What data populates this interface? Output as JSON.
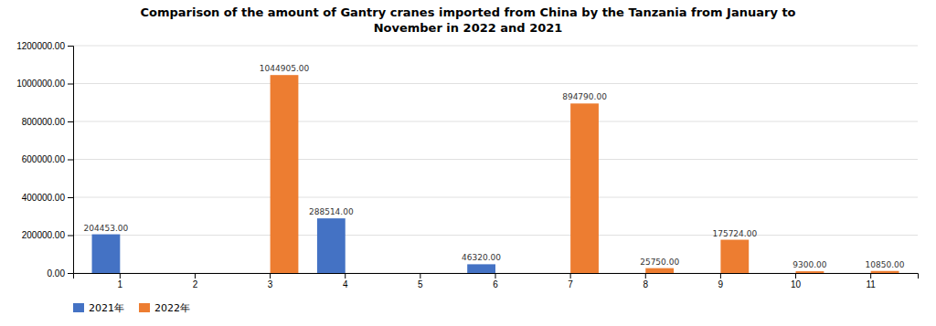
{
  "chart_data": {
    "type": "bar",
    "title": "Comparison of the amount of Gantry cranes imported from China by the Tanzania from January to\nNovember in 2022 and 2021",
    "categories": [
      "1",
      "2",
      "3",
      "4",
      "5",
      "6",
      "7",
      "8",
      "9",
      "10",
      "11"
    ],
    "series": [
      {
        "name": "2021年",
        "color": "#4472c4",
        "values": [
          204453.0,
          0,
          0,
          288514.0,
          0,
          46320.0,
          0,
          0,
          0,
          0,
          0
        ],
        "value_labels": [
          "204453.00",
          null,
          null,
          "288514.00",
          null,
          "46320.00",
          null,
          null,
          null,
          null,
          null
        ]
      },
      {
        "name": "2022年",
        "color": "#ed7d31",
        "values": [
          0,
          0,
          1044905.0,
          0,
          0,
          0,
          894790.0,
          25750.0,
          175724.0,
          9300.0,
          10850.0
        ],
        "value_labels": [
          null,
          null,
          "1044905.00",
          null,
          null,
          null,
          "894790.00",
          "25750.00",
          "175724.00",
          "9300.00",
          "10850.00"
        ]
      }
    ],
    "ylim": [
      0,
      1200000
    ],
    "yticks": [
      {
        "value": 0,
        "label": "0.00"
      },
      {
        "value": 200000,
        "label": "200000.00"
      },
      {
        "value": 400000,
        "label": "400000.00"
      },
      {
        "value": 600000,
        "label": "600000.00"
      },
      {
        "value": 800000,
        "label": "800000.00"
      },
      {
        "value": 1000000,
        "label": "1000000.00"
      },
      {
        "value": 1200000,
        "label": "1200000.00"
      }
    ],
    "grid": true,
    "legend": "lower left",
    "data_labels": true
  }
}
